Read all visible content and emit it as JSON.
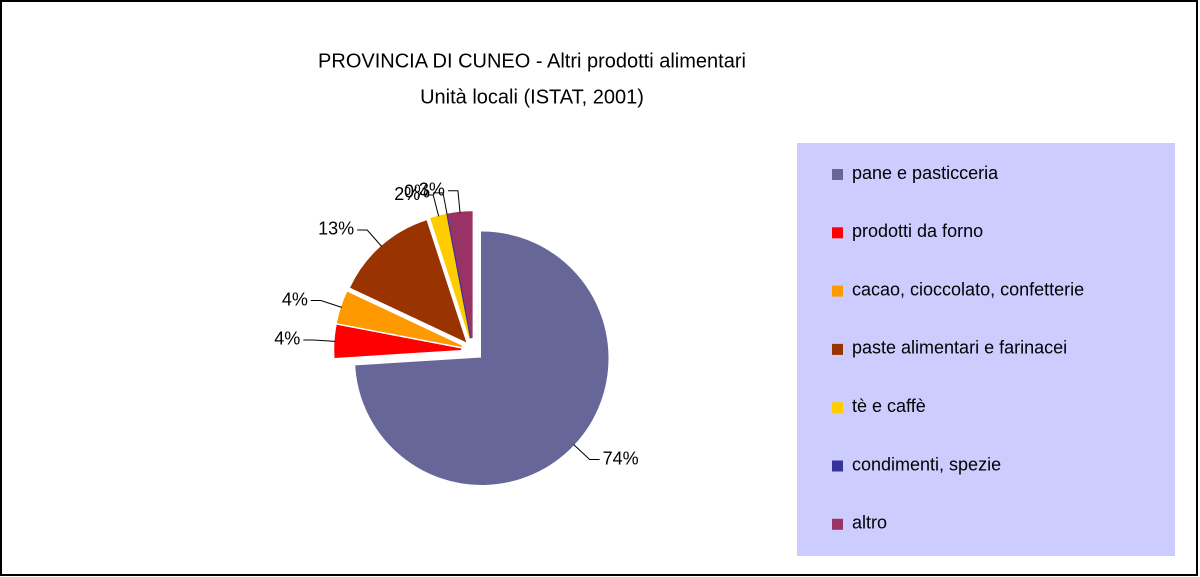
{
  "chart_data": {
    "type": "pie",
    "title": "PROVINCIA DI CUNEO - Altri prodotti alimentari",
    "subtitle": "Unità locali (ISTAT, 2001)",
    "categories": [
      "pane e pasticceria",
      "prodotti da forno",
      "cacao, cioccolato, confetterie",
      "paste alimentari e farinacei",
      "tè e caffè",
      "condimenti, spezie",
      "altro"
    ],
    "values": [
      74,
      4,
      4,
      13,
      2,
      0,
      3
    ],
    "value_labels": [
      "74%",
      "4%",
      "4%",
      "13%",
      "2%",
      "0%",
      "3%"
    ],
    "colors": [
      "#666699",
      "#ff0000",
      "#ff9900",
      "#993300",
      "#ffcc00",
      "#333399",
      "#993366"
    ],
    "legend": "right"
  }
}
